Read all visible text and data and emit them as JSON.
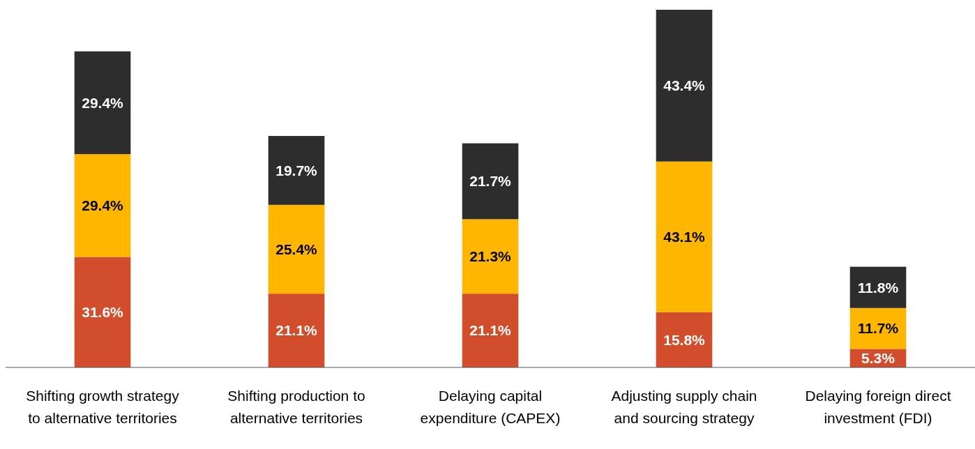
{
  "chart_data": {
    "type": "bar",
    "stacked": true,
    "categories": [
      "Shifting growth strategy to alternative territories",
      "Shifting production to alternative territories",
      "Delaying capital expenditure (CAPEX)",
      "Adjusting supply chain and sourcing strategy",
      "Delaying foreign direct investment (FDI)"
    ],
    "series": [
      {
        "color": "#d24d2b",
        "values": [
          31.6,
          21.1,
          21.1,
          15.8,
          5.3
        ],
        "value_labels": [
          "31.6%",
          "21.1%",
          "21.1%",
          "15.8%",
          "5.3%"
        ]
      },
      {
        "color": "#ffb600",
        "values": [
          29.4,
          25.4,
          21.3,
          43.1,
          11.7
        ],
        "value_labels": [
          "29.4%",
          "25.4%",
          "21.3%",
          "43.1%",
          "11.7%"
        ]
      },
      {
        "color": "#2d2d2d",
        "values": [
          29.4,
          19.7,
          21.7,
          43.4,
          11.8
        ],
        "value_labels": [
          "29.4%",
          "19.7%",
          "21.7%",
          "43.4%",
          "11.8%"
        ]
      }
    ]
  }
}
